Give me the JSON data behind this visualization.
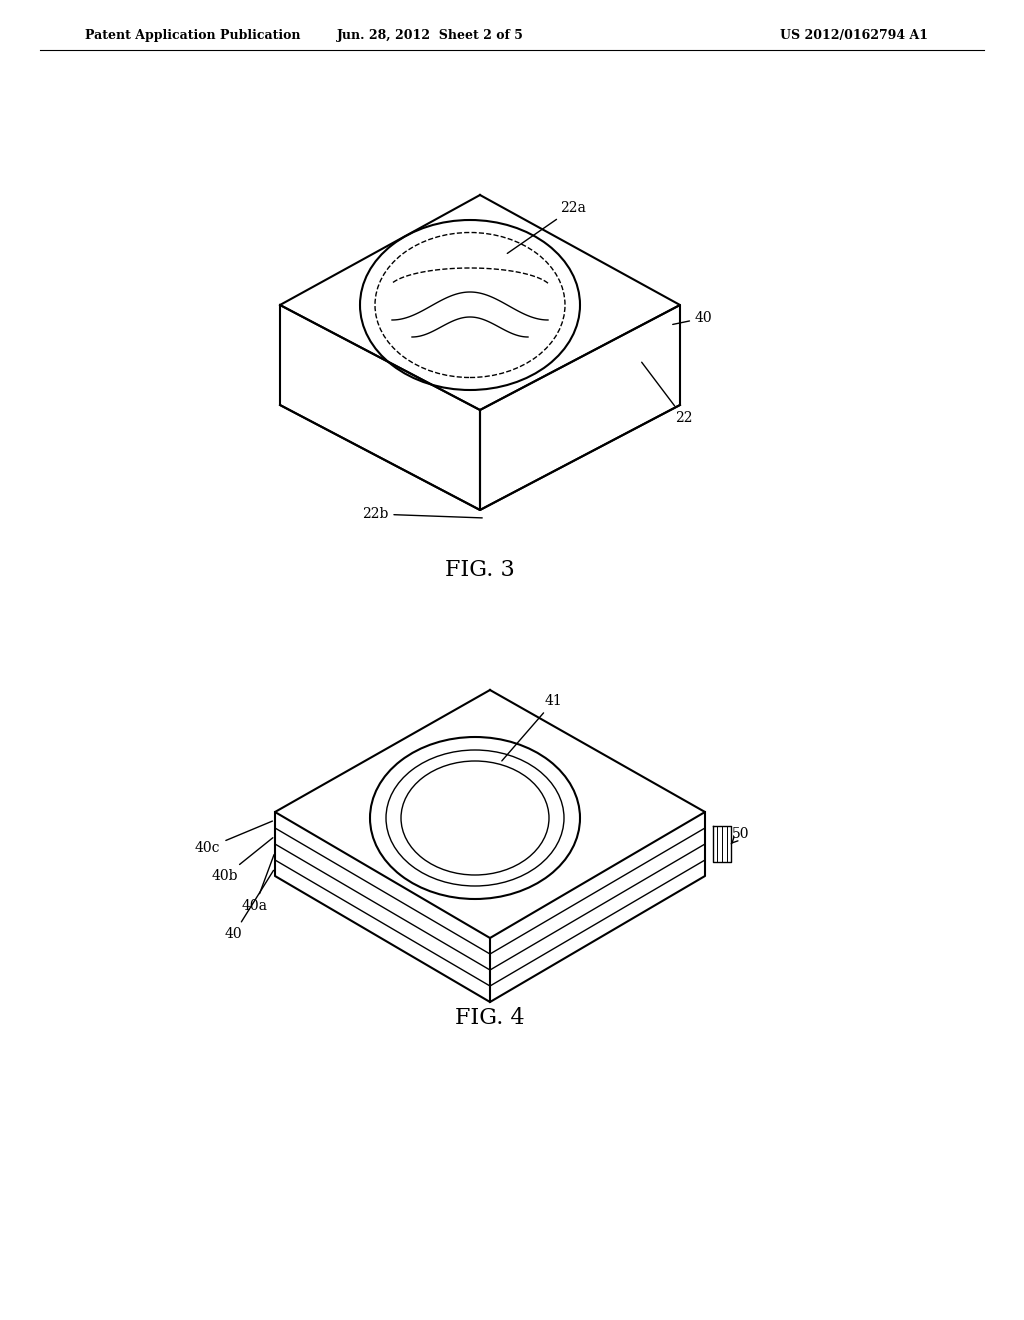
{
  "background_color": "#ffffff",
  "header_left": "Patent Application Publication",
  "header_center": "Jun. 28, 2012  Sheet 2 of 5",
  "header_right": "US 2012/0162794 A1",
  "fig3_label": "FIG. 3",
  "fig4_label": "FIG. 4",
  "line_color": "#000000",
  "line_width": 1.5,
  "lw_thin": 1.0
}
